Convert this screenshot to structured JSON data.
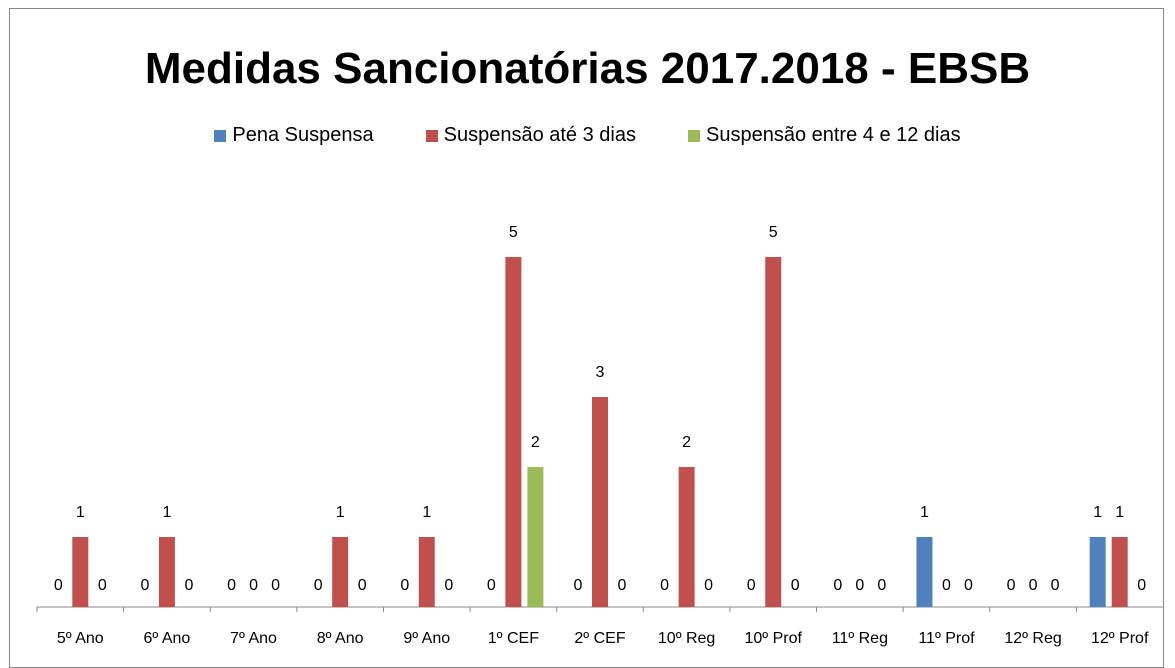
{
  "chart_data": {
    "type": "bar",
    "title": "Medidas Sancionatórias 2017.2018 - EBSB",
    "xlabel": "",
    "ylabel": "",
    "ylim": [
      0,
      5.6
    ],
    "grid": false,
    "legend_position": "top",
    "categories": [
      "5º Ano",
      "6º Ano",
      "7º Ano",
      "8º Ano",
      "9º Ano",
      "1º CEF",
      "2º CEF",
      "10º Reg",
      "10º Prof",
      "11º Reg",
      "11º Prof",
      "12º Reg",
      "12º Prof"
    ],
    "series": [
      {
        "name": "Pena Suspensa",
        "color": "#4f81bd",
        "values": [
          0,
          0,
          0,
          0,
          0,
          0,
          0,
          0,
          0,
          0,
          1,
          0,
          1
        ]
      },
      {
        "name": "Suspensão até 3 dias",
        "color": "#c0504d",
        "values": [
          1,
          1,
          0,
          1,
          1,
          5,
          3,
          2,
          5,
          0,
          0,
          0,
          1
        ]
      },
      {
        "name": "Suspensão entre 4 e 12 dias",
        "color": "#9bbb59",
        "values": [
          0,
          0,
          0,
          0,
          0,
          2,
          0,
          0,
          0,
          0,
          0,
          0,
          0
        ]
      }
    ]
  }
}
